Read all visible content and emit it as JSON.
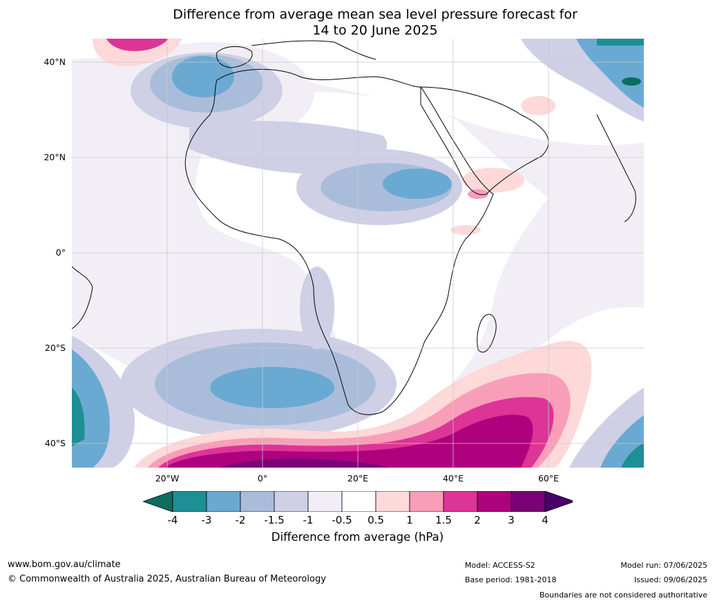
{
  "title": {
    "line1": "Difference from average mean sea level pressure forecast for",
    "line2": "14 to 20 June 2025"
  },
  "map": {
    "lat_labels": [
      "40°N",
      "20°N",
      "0°",
      "20°S",
      "40°S"
    ],
    "lon_labels": [
      "20°W",
      "0°",
      "20°E",
      "40°E",
      "60°E"
    ],
    "lon_range": [
      -40,
      80
    ],
    "lat_range": [
      -45,
      45
    ]
  },
  "colorbar": {
    "ticks": [
      "-4",
      "-3",
      "-2",
      "-1.5",
      "-1",
      "-0.5",
      "0.5",
      "1",
      "1.5",
      "2",
      "3",
      "4"
    ],
    "colors": [
      "#0b6e5f",
      "#1e8f94",
      "#6aaad2",
      "#a9bddb",
      "#cfd0e6",
      "#f1eef5",
      "#ffffff",
      "#fdd9da",
      "#f99eb8",
      "#dd3497",
      "#ae017e",
      "#7a0177",
      "#49006a"
    ],
    "label": "Difference from average (hPa)"
  },
  "footer": {
    "website": "www.bom.gov.au/climate",
    "copyright": "© Commonwealth of Australia 2025, Australian Bureau of Meteorology",
    "model": "Model: ACCESS-S2",
    "base_period": "Base period: 1981-2018",
    "model_run": "Model run: 07/06/2025",
    "issued": "Issued: 09/06/2025",
    "boundaries": "Boundaries are not considered authoritative"
  }
}
